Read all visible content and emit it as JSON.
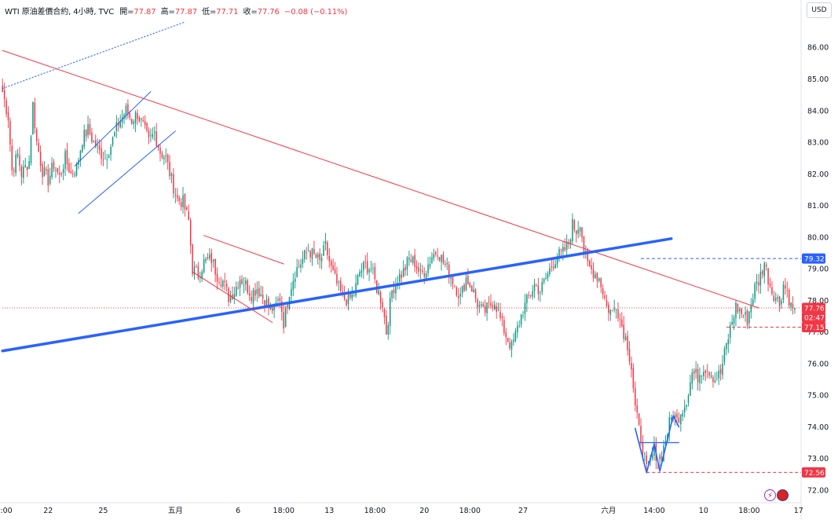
{
  "legend": {
    "symbol": "WTI 原油差價合約, 4小時, TVC",
    "open_label": "開=",
    "open": "77.87",
    "high_label": "高=",
    "high": "77.87",
    "low_label": "低=",
    "low": "77.71",
    "close_label": "收=",
    "close": "77.76",
    "change": "−0.08 (−0.11%)"
  },
  "currency": "USD",
  "icons": {
    "event": "lightning-icon",
    "flag": "us-flag-icon"
  },
  "colors": {
    "up": "#089981",
    "down": "#f23645",
    "trend_blue": "#2962ff",
    "trend_red": "#f23645"
  },
  "chart_data": {
    "type": "candlestick",
    "title": "WTI 原油差價合約, 4小時, TVC",
    "y_ticks": [
      "72.00",
      "73.00",
      "74.00",
      "75.00",
      "76.00",
      "77.00",
      "78.00",
      "79.00",
      "80.00",
      "81.00",
      "82.00",
      "83.00",
      "84.00",
      "85.00",
      "86.00"
    ],
    "ylim": [
      71.6,
      86.9
    ],
    "x_ticks": [
      ":00",
      "22",
      "25",
      "五月",
      "6",
      "18:00",
      "13",
      "18:00",
      "20",
      "18:00",
      "27",
      "六月",
      "14:00",
      "10",
      "18:00",
      "17"
    ],
    "x_tick_index": [
      2,
      24,
      53,
      91,
      124,
      148,
      172,
      196,
      222,
      246,
      274,
      319,
      343,
      369,
      393,
      419
    ],
    "n_bars": 420,
    "price_labels": [
      {
        "text": "79.32",
        "value": 79.32,
        "kind": "line"
      },
      {
        "text": "77.76",
        "value": 77.76,
        "kind": "current"
      },
      {
        "text": "02:47:04",
        "value": 77.76,
        "kind": "countdown"
      },
      {
        "text": "77.15",
        "value": 77.15,
        "kind": "level"
      },
      {
        "text": "72.56",
        "value": 72.56,
        "kind": "level"
      }
    ],
    "horizontal_levels": [
      {
        "value": 79.32,
        "style": "dashed",
        "color": "#2962ff",
        "from_bar": 336
      },
      {
        "value": 77.15,
        "style": "dashed",
        "color": "#f23645",
        "from_bar": 381
      },
      {
        "value": 72.56,
        "style": "dashed",
        "color": "#f23645",
        "from_bar": 339
      },
      {
        "value": 77.76,
        "style": "dotted",
        "color": "#f23645",
        "from_bar": 0
      }
    ],
    "trendlines": [
      {
        "name": "red-downtrend",
        "color": "#f23645",
        "width": 1,
        "p1": [
          0,
          85.9
        ],
        "p2": [
          398,
          77.76
        ]
      },
      {
        "name": "blue-support",
        "color": "#2962ff",
        "width": 3.5,
        "p1": [
          0,
          76.4
        ],
        "p2": [
          352,
          79.95
        ]
      },
      {
        "name": "blue-dotted",
        "color": "#2962ff",
        "width": 1,
        "dash": true,
        "p1": [
          0,
          84.7
        ],
        "p2": [
          96,
          86.8
        ]
      },
      {
        "name": "channel-upper",
        "color": "#2962ff",
        "width": 1,
        "p1": [
          38,
          82.25
        ],
        "p2": [
          78,
          84.6
        ]
      },
      {
        "name": "channel-lower",
        "color": "#2962ff",
        "width": 1,
        "p1": [
          40,
          80.75
        ],
        "p2": [
          91,
          83.35
        ]
      },
      {
        "name": "wedge-upper",
        "color": "#f23645",
        "width": 1,
        "p1": [
          106,
          80.05
        ],
        "p2": [
          148,
          79.15
        ]
      },
      {
        "name": "wedge-lower",
        "color": "#f23645",
        "width": 1,
        "p1": [
          100,
          78.9
        ],
        "p2": [
          142,
          77.3
        ]
      },
      {
        "name": "w-1",
        "color": "#2962ff",
        "width": 1.6,
        "p1": [
          333,
          73.95
        ],
        "p2": [
          339,
          72.55
        ]
      },
      {
        "name": "w-2",
        "color": "#2962ff",
        "width": 1.6,
        "p1": [
          339,
          72.55
        ],
        "p2": [
          343,
          73.45
        ]
      },
      {
        "name": "w-3",
        "color": "#2962ff",
        "width": 1.6,
        "p1": [
          343,
          73.45
        ],
        "p2": [
          346,
          72.6
        ]
      },
      {
        "name": "w-4",
        "color": "#2962ff",
        "width": 1.6,
        "p1": [
          346,
          72.6
        ],
        "p2": [
          353,
          74.35
        ]
      },
      {
        "name": "w-5",
        "color": "#2962ff",
        "width": 1.6,
        "p1": [
          353,
          74.35
        ],
        "p2": [
          356,
          74.0
        ]
      },
      {
        "name": "w-neck",
        "color": "#2962ff",
        "width": 1.2,
        "p1": [
          335,
          73.5
        ],
        "p2": [
          356,
          73.5
        ]
      }
    ],
    "candle_seed": 7,
    "anchors": [
      [
        0,
        84.6
      ],
      [
        3,
        83.8
      ],
      [
        5,
        82.1
      ],
      [
        8,
        82.6
      ],
      [
        10,
        82.0
      ],
      [
        14,
        82.4
      ],
      [
        16,
        84.2
      ],
      [
        18,
        83.0
      ],
      [
        21,
        82.1
      ],
      [
        24,
        81.8
      ],
      [
        27,
        82.3
      ],
      [
        30,
        81.9
      ],
      [
        33,
        82.5
      ],
      [
        36,
        82.0
      ],
      [
        39,
        82.2
      ],
      [
        42,
        83.1
      ],
      [
        45,
        83.4
      ],
      [
        48,
        83.0
      ],
      [
        51,
        82.7
      ],
      [
        54,
        82.5
      ],
      [
        57,
        82.9
      ],
      [
        61,
        83.6
      ],
      [
        65,
        84.0
      ],
      [
        68,
        83.7
      ],
      [
        71,
        83.9
      ],
      [
        74,
        83.5
      ],
      [
        77,
        83.0
      ],
      [
        80,
        83.3
      ],
      [
        83,
        82.7
      ],
      [
        86,
        82.5
      ],
      [
        89,
        81.8
      ],
      [
        92,
        81.2
      ],
      [
        95,
        81.1
      ],
      [
        98,
        80.5
      ],
      [
        100,
        79.0
      ],
      [
        103,
        78.8
      ],
      [
        106,
        79.2
      ],
      [
        110,
        79.3
      ],
      [
        113,
        78.8
      ],
      [
        116,
        78.6
      ],
      [
        119,
        78.1
      ],
      [
        122,
        78.3
      ],
      [
        125,
        78.7
      ],
      [
        128,
        78.5
      ],
      [
        131,
        78.2
      ],
      [
        134,
        78.4
      ],
      [
        137,
        78.1
      ],
      [
        140,
        77.8
      ],
      [
        143,
        77.7
      ],
      [
        146,
        78.1
      ],
      [
        148,
        77.3
      ],
      [
        151,
        78.3
      ],
      [
        154,
        78.9
      ],
      [
        158,
        79.3
      ],
      [
        161,
        79.6
      ],
      [
        164,
        79.4
      ],
      [
        167,
        79.2
      ],
      [
        170,
        79.7
      ],
      [
        173,
        79.0
      ],
      [
        176,
        78.5
      ],
      [
        179,
        78.1
      ],
      [
        182,
        78.0
      ],
      [
        185,
        78.2
      ],
      [
        188,
        78.9
      ],
      [
        191,
        79.1
      ],
      [
        194,
        79.0
      ],
      [
        197,
        78.4
      ],
      [
        200,
        77.9
      ],
      [
        202,
        77.0
      ],
      [
        205,
        78.3
      ],
      [
        208,
        78.7
      ],
      [
        211,
        78.9
      ],
      [
        214,
        79.3
      ],
      [
        217,
        79.2
      ],
      [
        220,
        78.8
      ],
      [
        223,
        79.0
      ],
      [
        226,
        79.4
      ],
      [
        229,
        79.6
      ],
      [
        232,
        79.2
      ],
      [
        235,
        78.9
      ],
      [
        238,
        78.5
      ],
      [
        241,
        78.1
      ],
      [
        244,
        78.7
      ],
      [
        247,
        78.4
      ],
      [
        250,
        77.9
      ],
      [
        253,
        77.6
      ],
      [
        256,
        77.8
      ],
      [
        259,
        78.0
      ],
      [
        262,
        77.4
      ],
      [
        265,
        76.9
      ],
      [
        268,
        76.5
      ],
      [
        271,
        77.1
      ],
      [
        274,
        77.7
      ],
      [
        277,
        78.1
      ],
      [
        280,
        78.5
      ],
      [
        283,
        78.3
      ],
      [
        286,
        78.7
      ],
      [
        289,
        79.1
      ],
      [
        292,
        79.4
      ],
      [
        295,
        79.5
      ],
      [
        298,
        79.8
      ],
      [
        300,
        80.4
      ],
      [
        302,
        80.2
      ],
      [
        304,
        80.5
      ],
      [
        306,
        79.6
      ],
      [
        308,
        79.1
      ],
      [
        311,
        78.9
      ],
      [
        314,
        78.7
      ],
      [
        316,
        78.3
      ],
      [
        318,
        77.8
      ],
      [
        321,
        77.6
      ],
      [
        323,
        77.9
      ],
      [
        325,
        77.4
      ],
      [
        327,
        77.0
      ],
      [
        329,
        76.6
      ],
      [
        331,
        75.9
      ],
      [
        333,
        74.6
      ],
      [
        335,
        73.9
      ],
      [
        337,
        73.4
      ],
      [
        339,
        72.6
      ],
      [
        341,
        72.9
      ],
      [
        343,
        73.3
      ],
      [
        345,
        73.0
      ],
      [
        347,
        73.1
      ],
      [
        349,
        73.6
      ],
      [
        351,
        74.1
      ],
      [
        353,
        74.4
      ],
      [
        355,
        74.2
      ],
      [
        357,
        74.5
      ],
      [
        359,
        74.7
      ],
      [
        361,
        75.1
      ],
      [
        363,
        75.7
      ],
      [
        366,
        75.6
      ],
      [
        369,
        75.9
      ],
      [
        372,
        75.8
      ],
      [
        375,
        75.5
      ],
      [
        378,
        75.7
      ],
      [
        380,
        76.3
      ],
      [
        383,
        77.1
      ],
      [
        386,
        77.8
      ],
      [
        389,
        77.6
      ],
      [
        392,
        77.4
      ],
      [
        394,
        77.9
      ],
      [
        396,
        78.4
      ],
      [
        398,
        78.6
      ],
      [
        400,
        79.0
      ],
      [
        401,
        79.2
      ],
      [
        403,
        78.7
      ],
      [
        405,
        78.3
      ],
      [
        407,
        78.1
      ],
      [
        409,
        77.9
      ],
      [
        411,
        78.5
      ],
      [
        413,
        78.3
      ],
      [
        415,
        77.8
      ],
      [
        417,
        77.76
      ]
    ]
  }
}
